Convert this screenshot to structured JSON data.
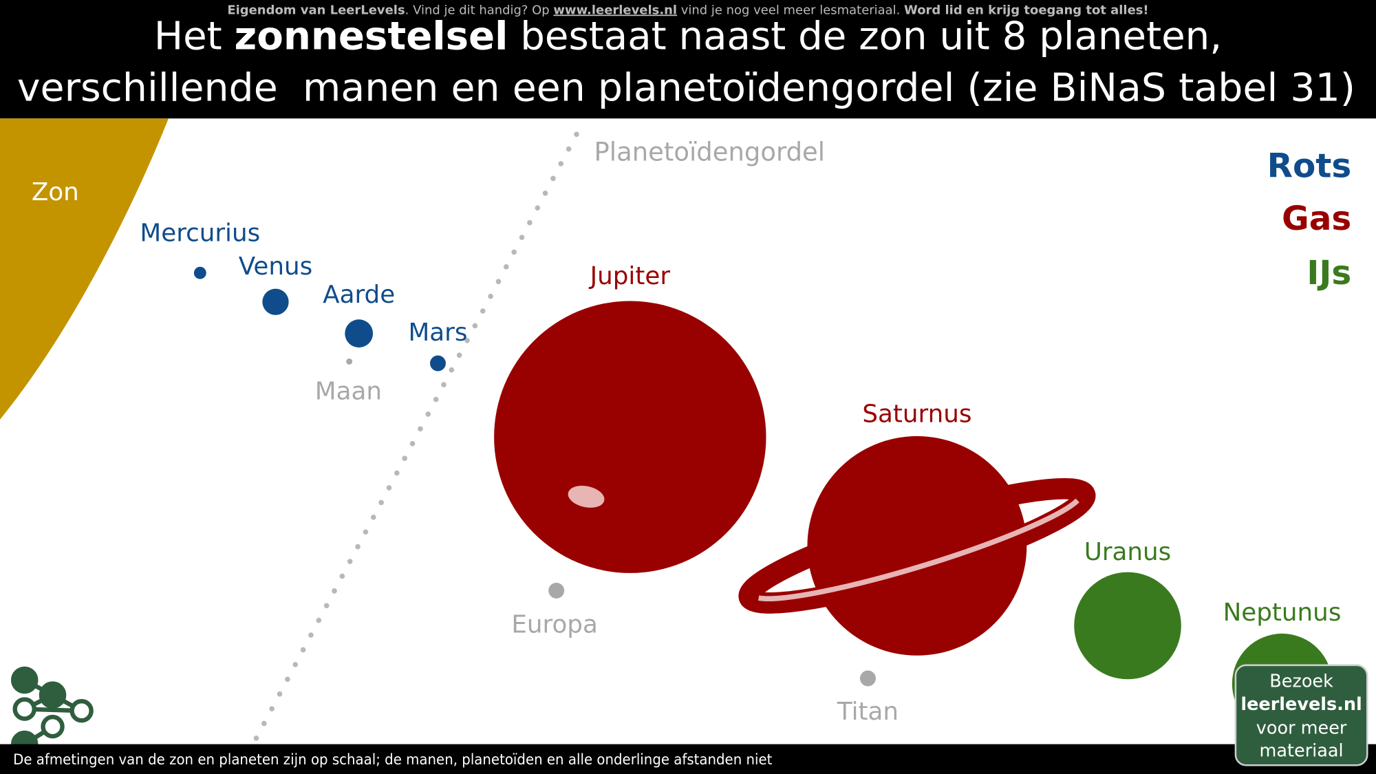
{
  "header": {
    "notice": [
      "Eigendom van LeerLevels",
      ". Vind je dit handig? Op ",
      "www.leerlevels.nl",
      " vind je nog veel meer lesmateriaal. ",
      "Word lid en krijg toegang tot alles!"
    ],
    "title": {
      "line1": [
        "Het ",
        "zonnestelsel",
        " bestaat naast de zon uit 8 planeten,"
      ],
      "line2": "verschillende  manen en een planetoïdengordel (zie BiNaS tabel 31)"
    }
  },
  "labels": {
    "sun": "Zon",
    "mercury": "Mercurius",
    "venus": "Venus",
    "earth": "Aarde",
    "mars": "Mars",
    "moon": "Maan",
    "belt": "Planetoïdengordel",
    "jupiter": "Jupiter",
    "europa": "Europa",
    "saturn": "Saturnus",
    "titan": "Titan",
    "uranus": "Uranus",
    "neptune": "Neptunus"
  },
  "legend": [
    "Rots",
    "Gas",
    "IJs"
  ],
  "footer": "De afmetingen van de zon en planeten zijn op schaal; de manen, planetoïden en alle onderlinge afstanden niet",
  "button": [
    "Bezoek",
    "leerlevels.nl",
    "voor meer",
    "materiaal"
  ]
}
